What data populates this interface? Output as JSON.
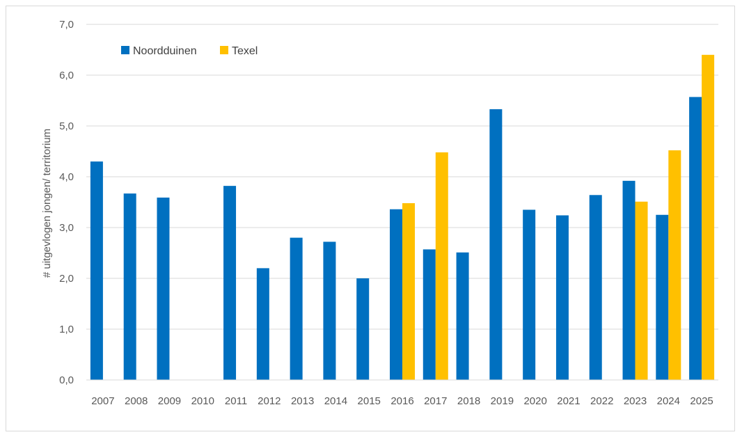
{
  "chart_data": {
    "type": "bar",
    "title": "",
    "xlabel": "",
    "ylabel": "# uitgevlogen jongen/ territorium",
    "ylim": [
      0,
      7
    ],
    "y_ticks": [
      "0,0",
      "1,0",
      "2,0",
      "3,0",
      "4,0",
      "5,0",
      "6,0",
      "7,0"
    ],
    "grid": true,
    "legend_position": "top-left",
    "categories": [
      "2007",
      "2008",
      "2009",
      "2010",
      "2011",
      "2012",
      "2013",
      "2014",
      "2015",
      "2016",
      "2017",
      "2018",
      "2019",
      "2020",
      "2021",
      "2022",
      "2023",
      "2024",
      "2025"
    ],
    "series": [
      {
        "name": "Noordduinen",
        "color": "#0070C0",
        "values": [
          4.3,
          3.67,
          3.59,
          null,
          3.82,
          2.2,
          2.8,
          2.72,
          2.0,
          3.36,
          2.57,
          2.51,
          5.33,
          3.35,
          3.24,
          3.64,
          3.92,
          3.25,
          5.57
        ]
      },
      {
        "name": "Texel",
        "color": "#FFC000",
        "values": [
          null,
          null,
          null,
          null,
          null,
          null,
          null,
          null,
          null,
          3.48,
          4.48,
          null,
          null,
          null,
          null,
          null,
          3.51,
          4.52,
          6.4
        ]
      }
    ]
  }
}
